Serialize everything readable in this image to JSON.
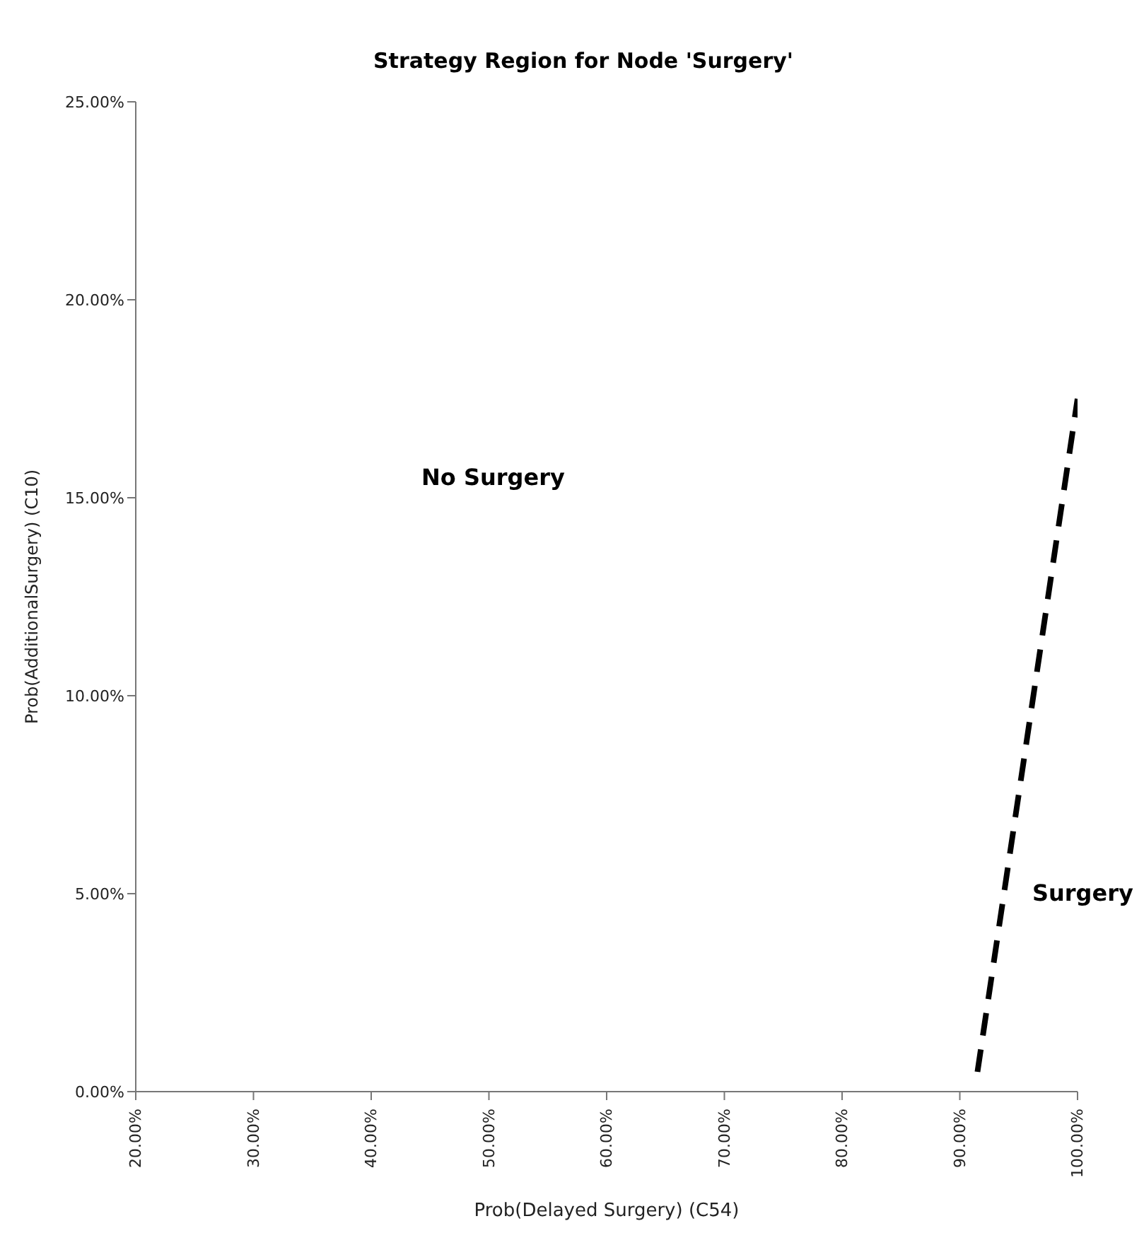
{
  "chart_data": {
    "type": "line",
    "title": "Strategy Region for Node 'Surgery'",
    "xlabel": "Prob(Delayed Surgery) (C54)",
    "ylabel": "Prob(AdditionalSurgery) (C10)",
    "x": [
      91.5,
      100
    ],
    "series": [
      {
        "color": "#000000",
        "values": [
          0.5,
          17.5
        ]
      }
    ],
    "xlim": [
      20,
      100
    ],
    "xticks": [
      {
        "value": 20,
        "label": "20.00%"
      },
      {
        "value": 30,
        "label": "30.00%"
      },
      {
        "value": 40,
        "label": "40.00%"
      },
      {
        "value": 50,
        "label": "50.00%"
      },
      {
        "value": 60,
        "label": "60.00%"
      },
      {
        "value": 70,
        "label": "70.00%"
      },
      {
        "value": 80,
        "label": "80.00%"
      },
      {
        "value": 90,
        "label": "90.00%"
      },
      {
        "value": 100,
        "label": "100.00%"
      }
    ],
    "ylim": [
      0,
      25
    ],
    "yticks": [
      {
        "value": 0,
        "label": "0.00%"
      },
      {
        "value": 5,
        "label": "5.00%"
      },
      {
        "value": 10,
        "label": "10.00%"
      },
      {
        "value": 15,
        "label": "15.00%"
      },
      {
        "value": 20,
        "label": "20.00%"
      },
      {
        "value": 25,
        "label": "25.00%"
      }
    ],
    "annotations": [
      "No Surgery",
      "Surgery"
    ],
    "grid": false,
    "legend": false,
    "marker": "none",
    "line_style": "dashed"
  }
}
